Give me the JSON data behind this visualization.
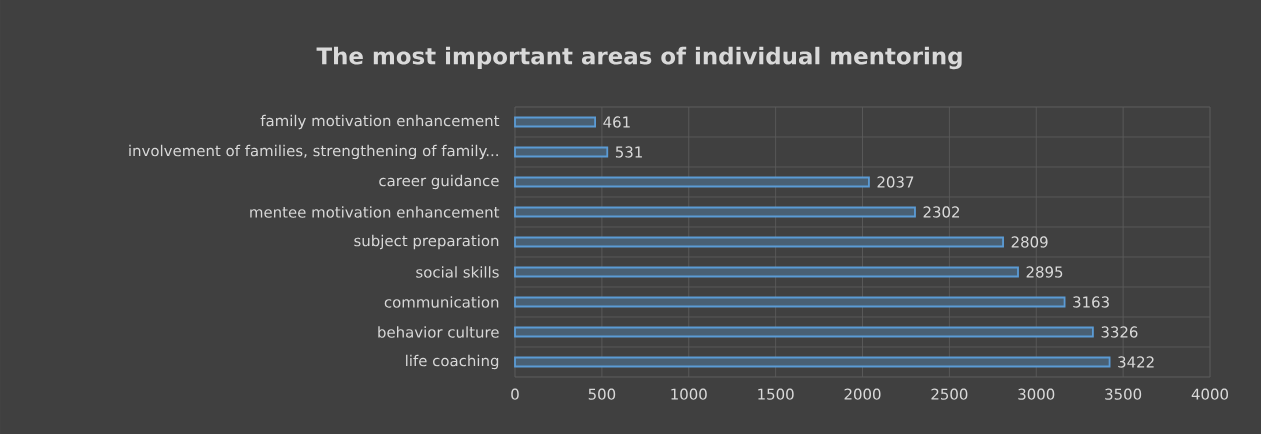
{
  "chart_data": {
    "type": "bar",
    "orientation": "horizontal",
    "title": "The most important areas of individual mentoring",
    "categories": [
      "family motivation enhancement",
      "involvement of families, strengthening of family...",
      "career guidance",
      "mentee motivation enhancement",
      "subject preparation",
      "social skills",
      "communication",
      "behavior culture",
      "life coaching"
    ],
    "values": [
      461,
      531,
      2037,
      2302,
      2809,
      2895,
      3163,
      3326,
      3422
    ],
    "color": "#5b9bd5",
    "xlim": [
      0,
      4000
    ],
    "xticks": [
      0,
      500,
      1000,
      1500,
      2000,
      2500,
      3000,
      3500,
      4000
    ],
    "grid": true,
    "data_labels": true
  }
}
